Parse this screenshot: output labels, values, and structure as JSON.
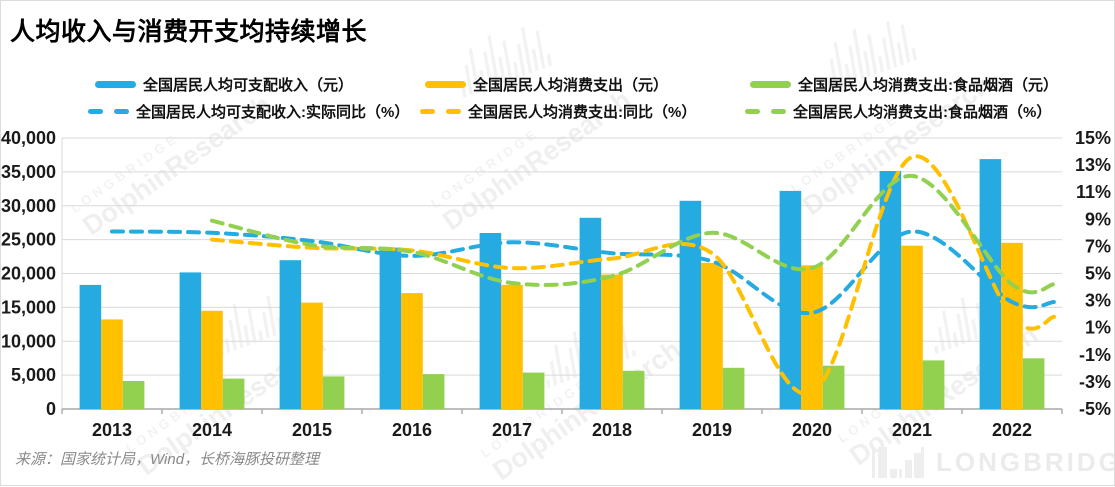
{
  "title": "人均收入与消费开支均持续增长",
  "source": "来源：国家统计局，Wind，长桥海豚投研整理",
  "logo": {
    "text": "LONGBRIDGE"
  },
  "watermark": {
    "brand": "LONGBRIDGE",
    "name": "DolphinResearch"
  },
  "colors": {
    "blue": "#25AAE1",
    "yellow": "#FFC000",
    "green": "#92D050",
    "grid": "#d9d9d9",
    "axis_line": "#a8a8a8",
    "tick_text": "#1a1a1a"
  },
  "chart_data": {
    "type": "bar",
    "subtype": "grouped bars + smoothed dashed lines (dual axis)",
    "categories": [
      "2013",
      "2014",
      "2015",
      "2016",
      "2017",
      "2018",
      "2019",
      "2020",
      "2021",
      "2022"
    ],
    "bar_series": [
      {
        "label": "全国居民人均可支配收入（元）",
        "color_key": "blue",
        "values": [
          18311,
          20167,
          21966,
          23821,
          25974,
          28228,
          30733,
          32189,
          35128,
          36883
        ]
      },
      {
        "label": "全国居民人均消费支出（元）",
        "color_key": "yellow",
        "values": [
          13220,
          14491,
          15712,
          17111,
          18322,
          19853,
          21559,
          21210,
          24100,
          24538
        ]
      },
      {
        "label": "全国居民人均消费支出:食品烟酒（元）",
        "color_key": "green",
        "values": [
          4127,
          4494,
          4814,
          5151,
          5374,
          5631,
          6084,
          6397,
          7178,
          7481
        ]
      }
    ],
    "line_series": [
      {
        "label": "全国居民人均可支配收入:实际同比（%）",
        "color_key": "blue",
        "values": [
          8.1,
          8.0,
          7.4,
          6.3,
          7.3,
          6.5,
          5.9,
          2.1,
          8.1,
          2.9
        ]
      },
      {
        "label": "全国居民人均消费支出:同比（%）",
        "color_key": "yellow",
        "values": [
          null,
          7.5,
          6.9,
          6.7,
          5.4,
          6.1,
          6.5,
          -3.8,
          13.6,
          1.8
        ]
      },
      {
        "label": "全国居民人均消费支出:食品烟酒（%）",
        "color_key": "green",
        "values": [
          null,
          8.9,
          7.1,
          6.6,
          4.3,
          4.8,
          8.0,
          5.4,
          12.2,
          4.2
        ]
      }
    ],
    "y_left": {
      "min": 0,
      "max": 40000,
      "step": 5000,
      "tick_labels": [
        "0",
        "5,000",
        "10,000",
        "15,000",
        "20,000",
        "25,000",
        "30,000",
        "35,000",
        "40,000"
      ]
    },
    "y_right": {
      "min": -5,
      "max": 15,
      "step": 2,
      "tick_labels": [
        "-5%",
        "-3%",
        "-1%",
        "1%",
        "3%",
        "5%",
        "7%",
        "9%",
        "11%",
        "13%",
        "15%"
      ]
    },
    "grid": true,
    "legend_position": "top"
  }
}
